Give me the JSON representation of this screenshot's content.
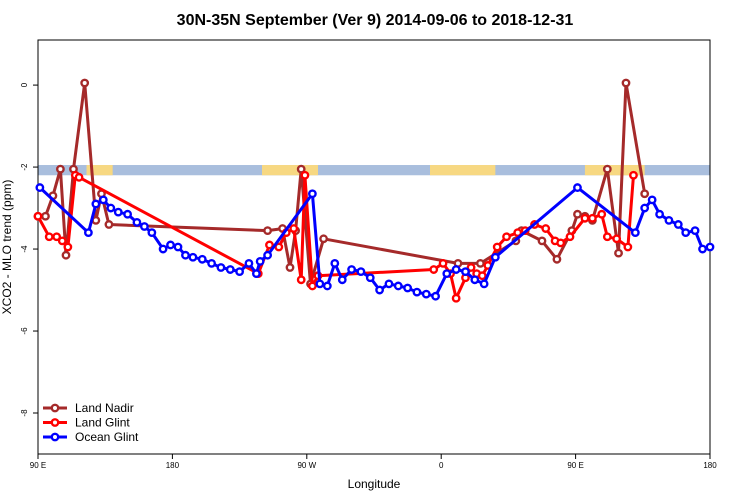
{
  "chart_data": {
    "type": "line",
    "title": "30N-35N September (Ver 9)   2014-09-06 to 2018-12-31",
    "xlabel": "Longitude",
    "ylabel": "XCO2 - MLO trend (ppm)",
    "xlim": [
      0,
      360
    ],
    "ylim": [
      -9,
      1.1
    ],
    "x_ticks": [
      {
        "value": 0,
        "label": "90 E"
      },
      {
        "value": 72,
        "label": "180"
      },
      {
        "value": 144,
        "label": "90 W"
      },
      {
        "value": 216,
        "label": "0"
      },
      {
        "value": 288,
        "label": "90 E"
      },
      {
        "value": 360,
        "label": "180"
      }
    ],
    "y_ticks": [
      0,
      -2,
      -4,
      -6,
      -8
    ],
    "grid": false,
    "legend_position": "bottom-left",
    "surface_band": {
      "y_top": -1.95,
      "y_bottom": -2.2,
      "land_color": "#f7d882",
      "ocean_color": "#a9bedd"
    },
    "series": [
      {
        "name": "Land Nadir",
        "color": "#a52a2a",
        "x": [
          0,
          4,
          8,
          12,
          15,
          19,
          25,
          31,
          34,
          38,
          123,
          131,
          135,
          138,
          141,
          146,
          153,
          225,
          237,
          256,
          259,
          270,
          278,
          286,
          289,
          293,
          297,
          305,
          311,
          315,
          325
        ],
        "y": [
          -3.2,
          -3.2,
          -2.7,
          -2.05,
          -4.15,
          -2.05,
          0.05,
          -3.3,
          -2.65,
          -3.4,
          -3.55,
          -3.5,
          -4.45,
          -3.55,
          -2.05,
          -4.85,
          -3.75,
          -4.35,
          -4.35,
          -3.8,
          -3.55,
          -3.8,
          -4.25,
          -3.55,
          -3.15,
          -3.2,
          -3.3,
          -2.05,
          -4.1,
          0.05,
          -2.65
        ]
      },
      {
        "name": "Land Glint",
        "color": "#ff0000",
        "x": [
          0,
          6,
          10,
          13,
          16,
          20,
          22,
          118,
          124,
          129,
          133,
          137,
          141,
          143,
          147,
          150,
          212,
          217,
          221,
          224,
          229,
          232,
          235,
          238,
          241,
          246,
          251,
          257,
          261,
          266,
          272,
          277,
          280,
          285,
          293,
          297,
          302,
          305,
          310,
          316,
          319
        ],
        "y": [
          -3.2,
          -3.7,
          -3.7,
          -3.8,
          -3.95,
          -2.2,
          -2.25,
          -4.6,
          -3.9,
          -3.95,
          -3.6,
          -3.5,
          -4.75,
          -2.2,
          -4.9,
          -4.65,
          -4.5,
          -4.35,
          -4.6,
          -5.2,
          -4.7,
          -4.45,
          -4.6,
          -4.65,
          -4.4,
          -3.95,
          -3.7,
          -3.6,
          -3.55,
          -3.4,
          -3.5,
          -3.8,
          -3.85,
          -3.7,
          -3.25,
          -3.25,
          -3.15,
          -3.7,
          -3.75,
          -3.95,
          -2.2
        ]
      },
      {
        "name": "Ocean Glint",
        "color": "#0000ff",
        "x": [
          1,
          27,
          31,
          35,
          39,
          43,
          48,
          53,
          57,
          61,
          67,
          71,
          75,
          79,
          83,
          88,
          93,
          98,
          103,
          108,
          113,
          117,
          119,
          123,
          147,
          151,
          155,
          159,
          163,
          168,
          173,
          178,
          183,
          188,
          193,
          198,
          203,
          208,
          213,
          219,
          224,
          229,
          234,
          239,
          245,
          289,
          320,
          325,
          329,
          333,
          338,
          343,
          347,
          352,
          356,
          360
        ],
        "y": [
          -2.5,
          -3.6,
          -2.9,
          -2.8,
          -3.0,
          -3.1,
          -3.15,
          -3.35,
          -3.45,
          -3.6,
          -4.0,
          -3.9,
          -3.95,
          -4.15,
          -4.2,
          -4.25,
          -4.35,
          -4.45,
          -4.5,
          -4.55,
          -4.35,
          -4.6,
          -4.3,
          -4.15,
          -2.65,
          -4.85,
          -4.9,
          -4.35,
          -4.75,
          -4.5,
          -4.55,
          -4.7,
          -5.0,
          -4.85,
          -4.9,
          -4.95,
          -5.05,
          -5.1,
          -5.15,
          -4.6,
          -4.5,
          -4.55,
          -4.75,
          -4.85,
          -4.2,
          -2.5,
          -3.6,
          -3.0,
          -2.8,
          -3.15,
          -3.3,
          -3.4,
          -3.6,
          -3.55,
          -4.0,
          -3.95
        ]
      }
    ]
  }
}
